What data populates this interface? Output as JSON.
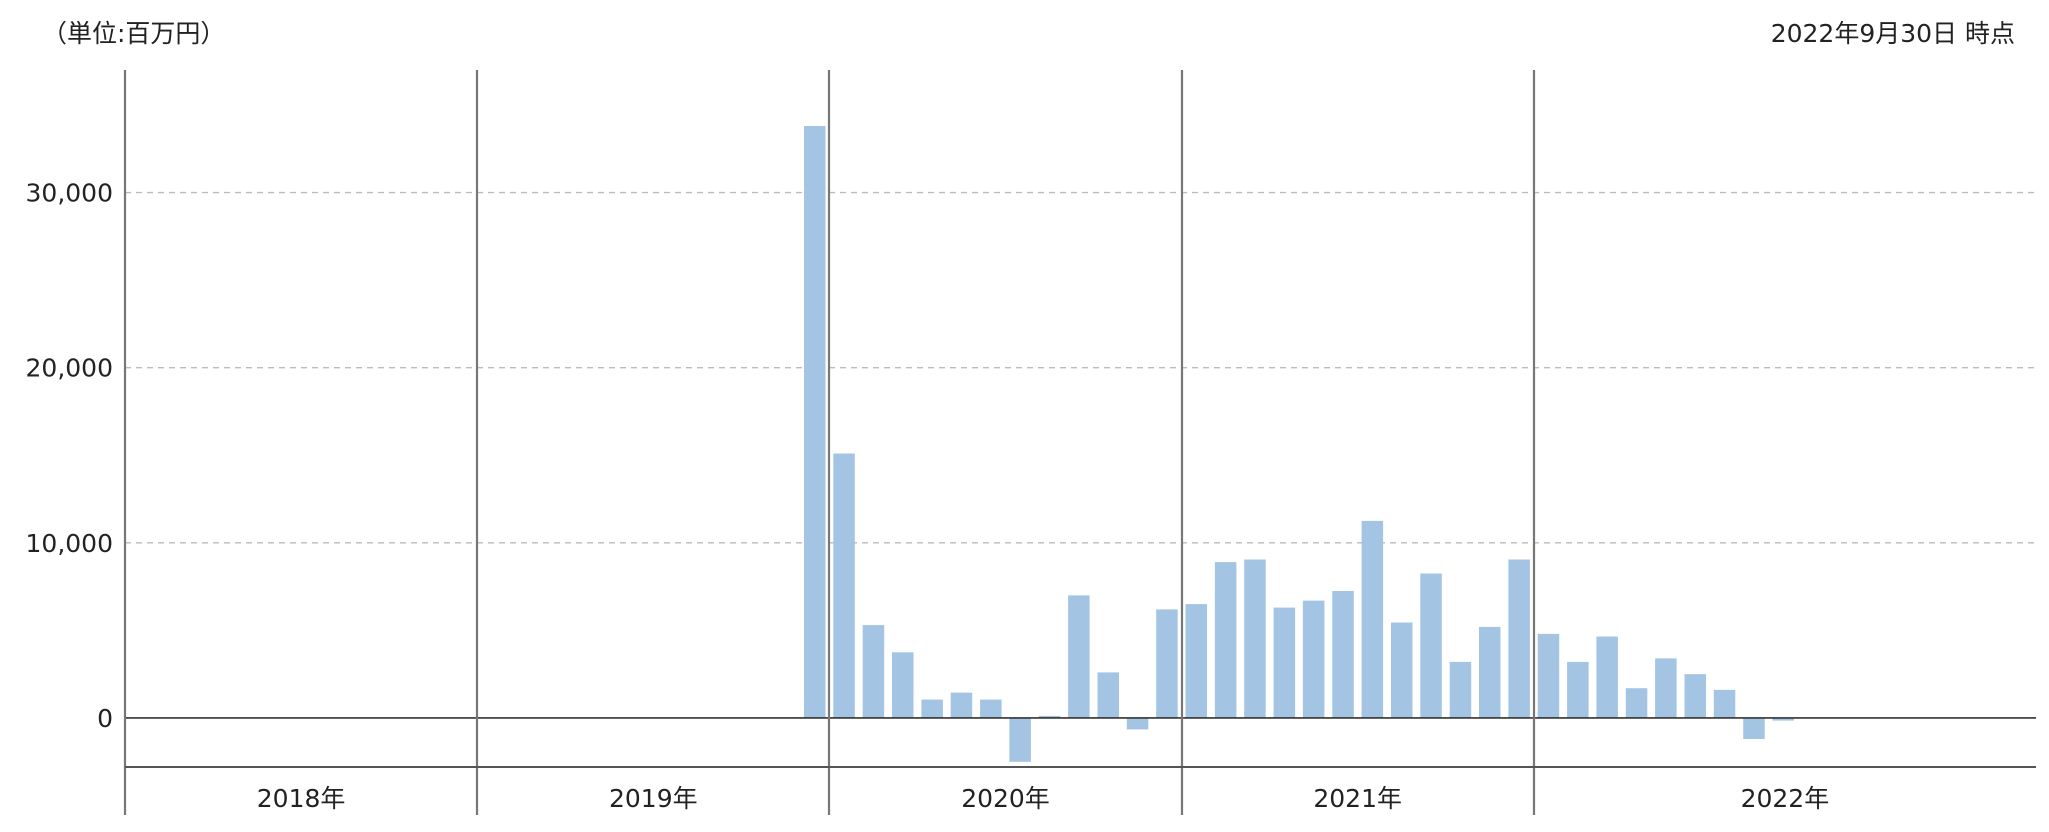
{
  "header": {
    "unit": "（単位:百万円）",
    "as_of": "2022年9月30日 時点"
  },
  "chart_data": {
    "type": "bar",
    "title": "",
    "xlabel": "",
    "ylabel": "",
    "ylim": [
      -2800,
      37000
    ],
    "y_ticks": [
      0,
      10000,
      20000,
      30000
    ],
    "y_tick_labels": [
      "0",
      "10,000",
      "20,000",
      "30,000"
    ],
    "grid": "horizontal-dashed",
    "year_groups": [
      {
        "label": "2018年",
        "months": 12
      },
      {
        "label": "2019年",
        "months": 12
      },
      {
        "label": "2020年",
        "months": 12
      },
      {
        "label": "2021年",
        "months": 12
      },
      {
        "label": "2022年",
        "months": 9
      }
    ],
    "series": [
      {
        "color": "#a4c4e4",
        "values": [
          null,
          null,
          null,
          null,
          null,
          null,
          null,
          null,
          null,
          null,
          null,
          null,
          null,
          null,
          null,
          null,
          null,
          null,
          null,
          null,
          null,
          null,
          null,
          33800,
          15100,
          5300,
          3750,
          1050,
          1450,
          1050,
          -2500,
          120,
          7000,
          2600,
          -650,
          6200,
          6500,
          8900,
          9050,
          6300,
          6700,
          7250,
          11250,
          5450,
          8250,
          3200,
          5200,
          9050,
          4800,
          3200,
          4650,
          1700,
          3400,
          2500,
          1600,
          -1200,
          -150
        ]
      }
    ]
  }
}
